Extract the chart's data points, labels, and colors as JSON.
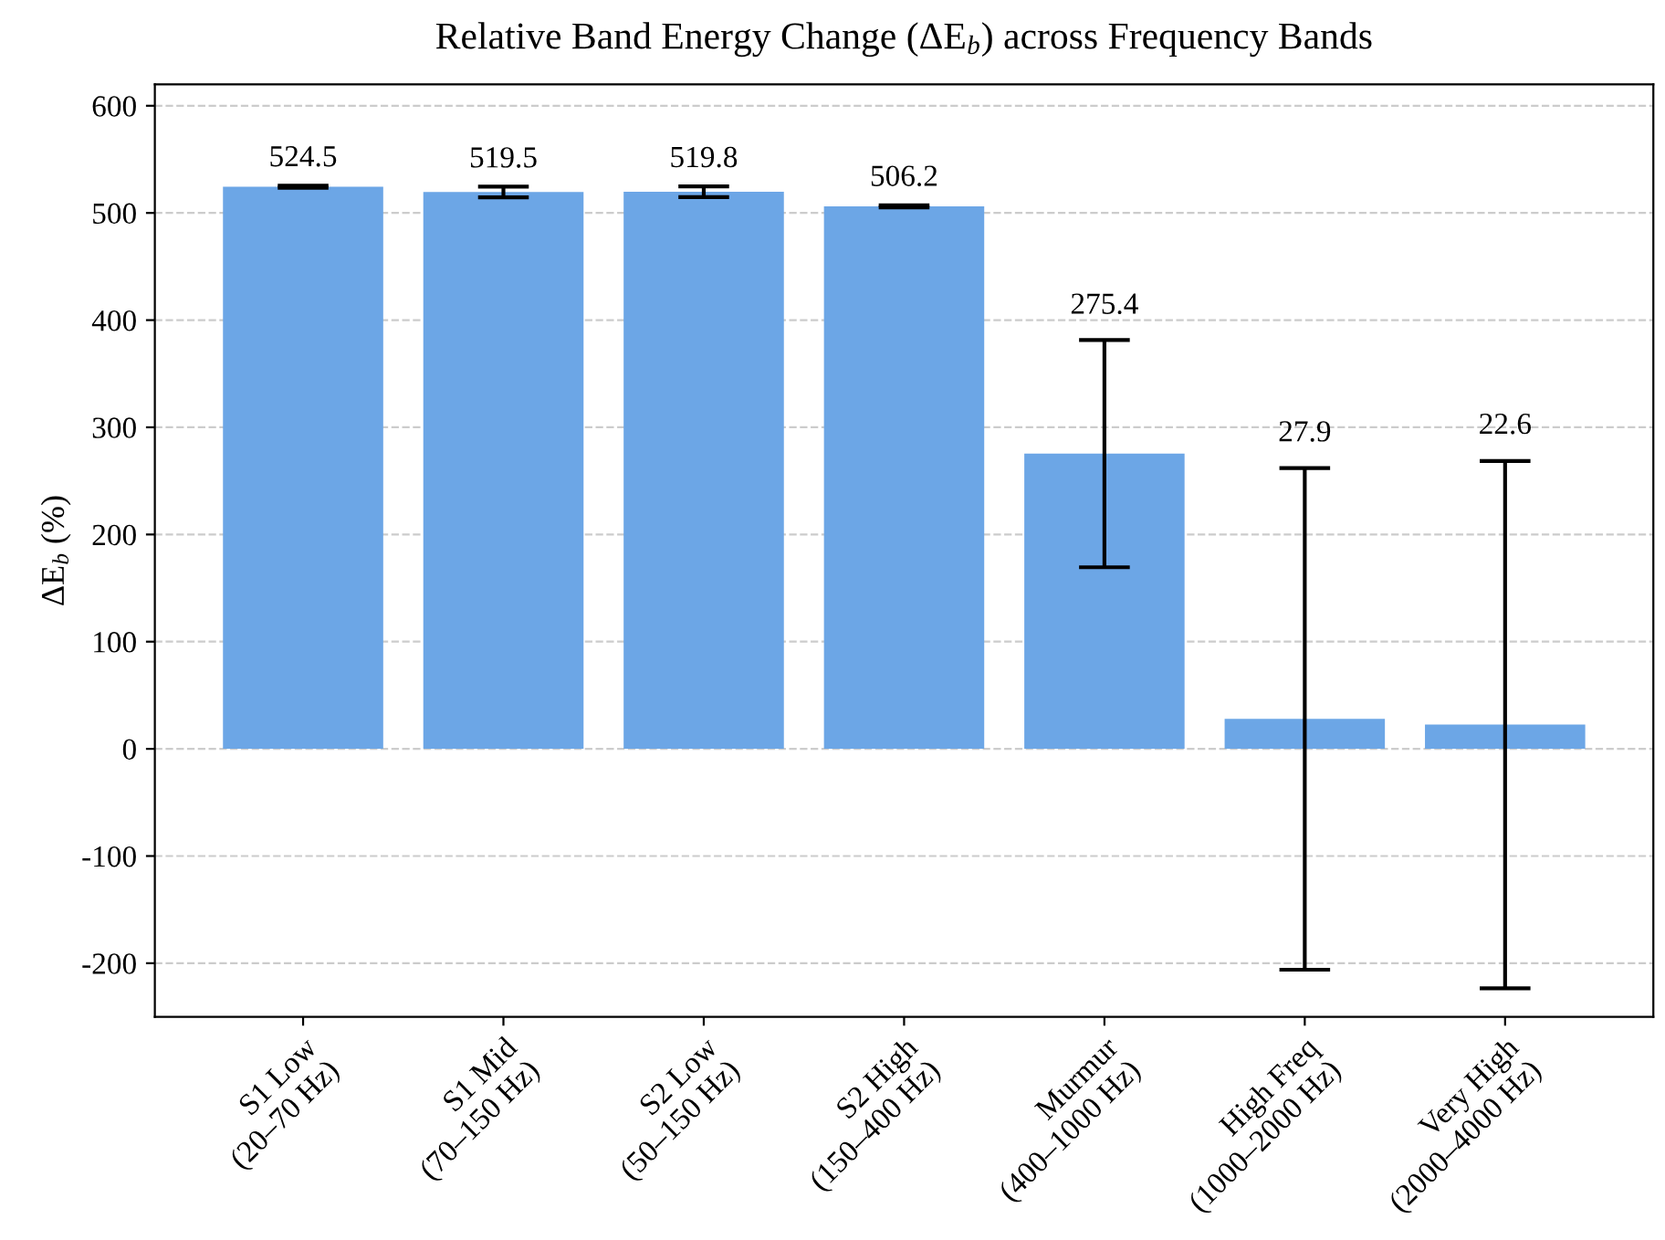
{
  "chart_data": {
    "type": "bar",
    "title": "Relative Band Energy Change (ΔE$_{b}$) across Frequency Bands",
    "ylabel": "ΔE$_{b}$ (%)",
    "categories": [
      "S1 Low\n(20–70 Hz)",
      "S1 Mid\n(70–150 Hz)",
      "S2 Low\n(50–150 Hz)",
      "S2 High\n(150–400 Hz)",
      "Murmur\n(400–1000 Hz)",
      "High Freq\n(1000–2000 Hz)",
      "Very High\n(2000–4000 Hz)"
    ],
    "values": [
      524.5,
      519.5,
      519.8,
      506.2,
      275.4,
      27.9,
      22.6
    ],
    "errors": [
      1,
      5,
      5,
      1,
      106,
      234,
      246
    ],
    "color": "#6ca6e6",
    "value_labels": [
      "524.5",
      "519.5",
      "519.8",
      "506.2",
      null,
      null,
      null
    ],
    "annotations": [
      {
        "text": "275.4",
        "x": "Murmur\n(400–1000 Hz)",
        "y": 381
      },
      {
        "text": "27.9",
        "x": "High Freq\n(1000–2000 Hz)",
        "y": 262
      },
      {
        "text": "22.6",
        "x": "Very High\n(2000–4000 Hz)",
        "y": 269
      }
    ],
    "ylim": [
      -250,
      620
    ],
    "yticks": [
      -200,
      -100,
      0,
      100,
      200,
      300,
      400,
      500,
      600
    ],
    "grid": "y"
  }
}
